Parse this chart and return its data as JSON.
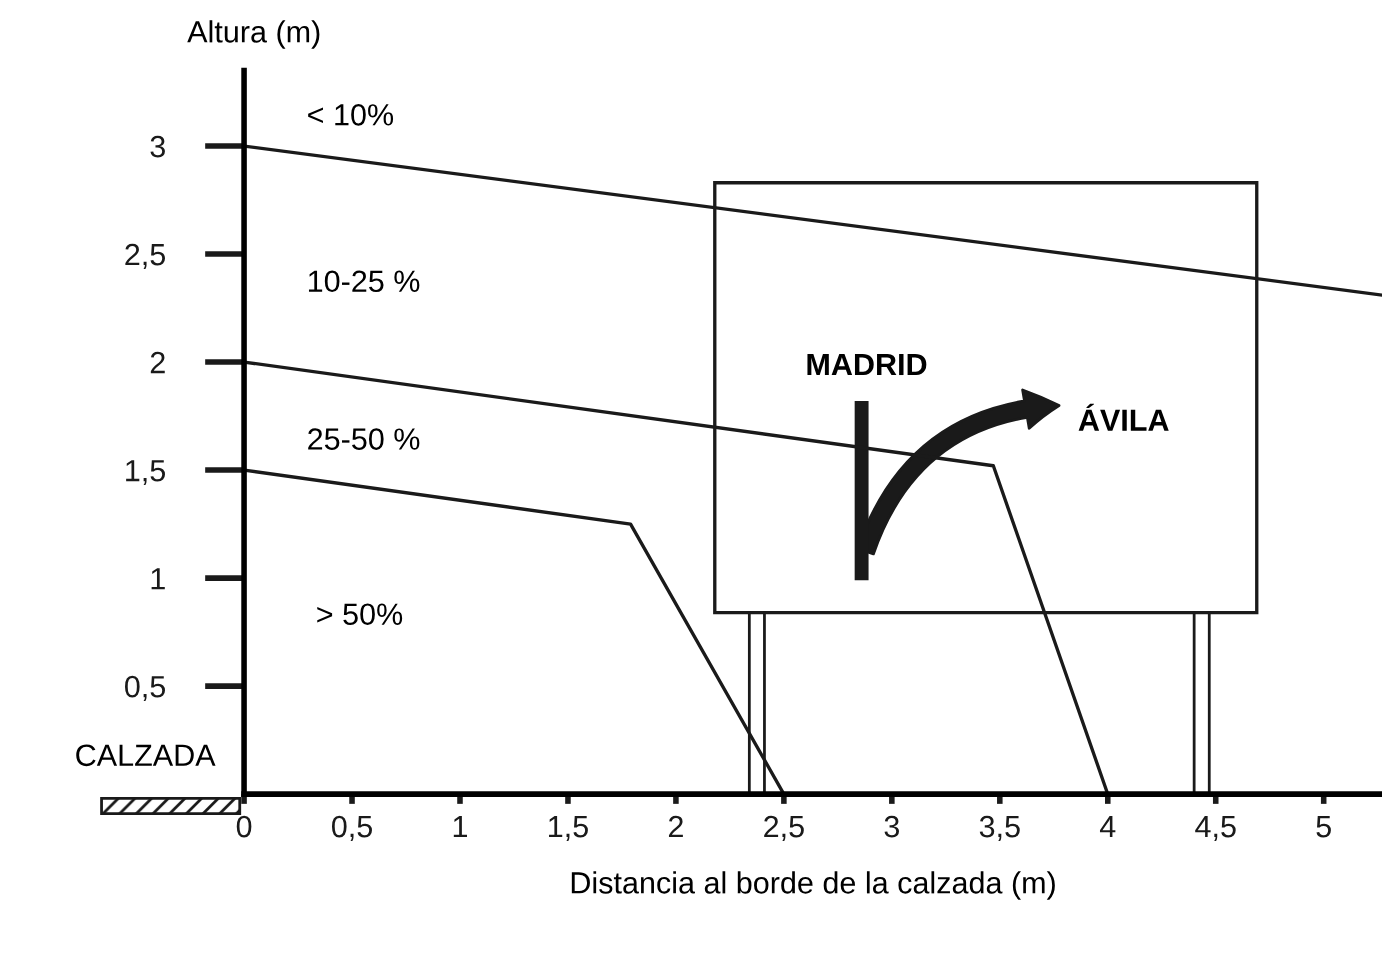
{
  "chart_data": {
    "type": "line",
    "xlabel": "Distancia al borde de la calzada (m)",
    "ylabel": "Altura (m)",
    "series": [
      {
        "color": "#1a1a1a",
        "x": [
          0,
          5.27
        ],
        "values": [
          3,
          2.31
        ]
      },
      {
        "color": "#1a1a1a",
        "x": [
          0,
          3.47,
          4
        ],
        "values": [
          2,
          1.52,
          0
        ]
      },
      {
        "color": "#1a1a1a",
        "x": [
          0,
          1.79,
          2.5
        ],
        "values": [
          1.5,
          1.25,
          0
        ]
      }
    ],
    "xlim": [
      0,
      5.27
    ],
    "ylim": [
      0,
      3.35
    ],
    "xticks": [
      {
        "value": 0,
        "label": "0"
      },
      {
        "value": 0.5,
        "label": "0,5"
      },
      {
        "value": 1,
        "label": "1"
      },
      {
        "value": 1.5,
        "label": "1,5"
      },
      {
        "value": 2,
        "label": "2"
      },
      {
        "value": 2.5,
        "label": "2,5"
      },
      {
        "value": 3,
        "label": "3"
      },
      {
        "value": 3.5,
        "label": "3,5"
      },
      {
        "value": 4,
        "label": "4"
      },
      {
        "value": 4.5,
        "label": "4,5"
      },
      {
        "value": 5,
        "label": "5"
      }
    ],
    "yticks": [
      {
        "value": 0.5,
        "label": "0,5"
      },
      {
        "value": 1,
        "label": "1"
      },
      {
        "value": 1.5,
        "label": "1,5"
      },
      {
        "value": 2,
        "label": "2"
      },
      {
        "value": 2.5,
        "label": "2,5"
      },
      {
        "value": 3,
        "label": "3"
      }
    ],
    "annotations": [
      "< 10%",
      "10-25 %",
      "25-50 %",
      "> 50%",
      "MADRID",
      "ÁVILA",
      "CALZADA"
    ],
    "grid": false,
    "legend": false,
    "marker": "none",
    "line_style": "solid"
  }
}
